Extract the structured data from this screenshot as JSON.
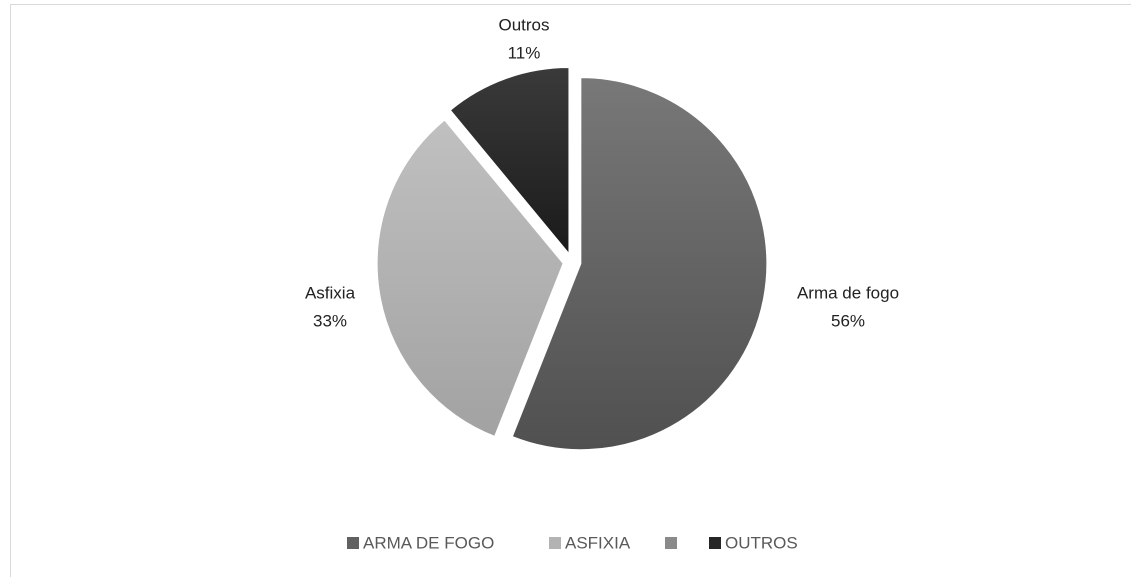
{
  "chart_data": {
    "type": "pie",
    "categories": [
      "Arma de fogo",
      "Asfixia",
      "Outros"
    ],
    "values": [
      56,
      33,
      11
    ],
    "value_labels": [
      "56%",
      "33%",
      "11%"
    ],
    "colors": [
      "#616161",
      "#b3b3b3",
      "#262626"
    ],
    "legend": [
      {
        "label": "ARMA DE FOGO",
        "color": "#616161"
      },
      {
        "label": "ASFIXIA",
        "color": "#b3b3b3"
      },
      {
        "label": null,
        "color": "#8a8a8a"
      },
      {
        "label": "OUTROS",
        "color": "#262626"
      }
    ],
    "legend_position": "bottom"
  }
}
